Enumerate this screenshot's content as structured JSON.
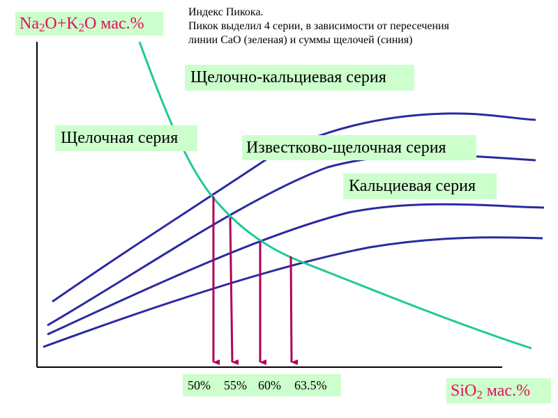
{
  "note": {
    "title": "Индекс Пикока.",
    "line1": "Пикок выделил 4 серии, в зависимости от пересечения",
    "line2": "линии CaO (зеленая) и суммы щелочей (синия)"
  },
  "y_axis_label": {
    "prefix": "Na",
    "sub1": "2",
    "middle": "O+K",
    "sub2": "2",
    "suffix": "O мас.%"
  },
  "x_axis_label": {
    "prefix": "SiO",
    "sub": "2",
    "suffix": " мас.%"
  },
  "series_labels": {
    "alkali_calcic": "Щелочно-кальциевая серия",
    "alkaline": "Щелочная серия",
    "calc_alkaline": "Известково-щелочная серия",
    "calcic": "Кальциевая серия"
  },
  "percentages": [
    "50%",
    "55%",
    "60%",
    "63.5%"
  ],
  "colors": {
    "cao_line": "#1ec99a",
    "alkali_lines": "#2a2aa0",
    "arrows": "#b0005a",
    "axis_label_text": "#e0105a",
    "label_background": "#ccffcc"
  }
}
